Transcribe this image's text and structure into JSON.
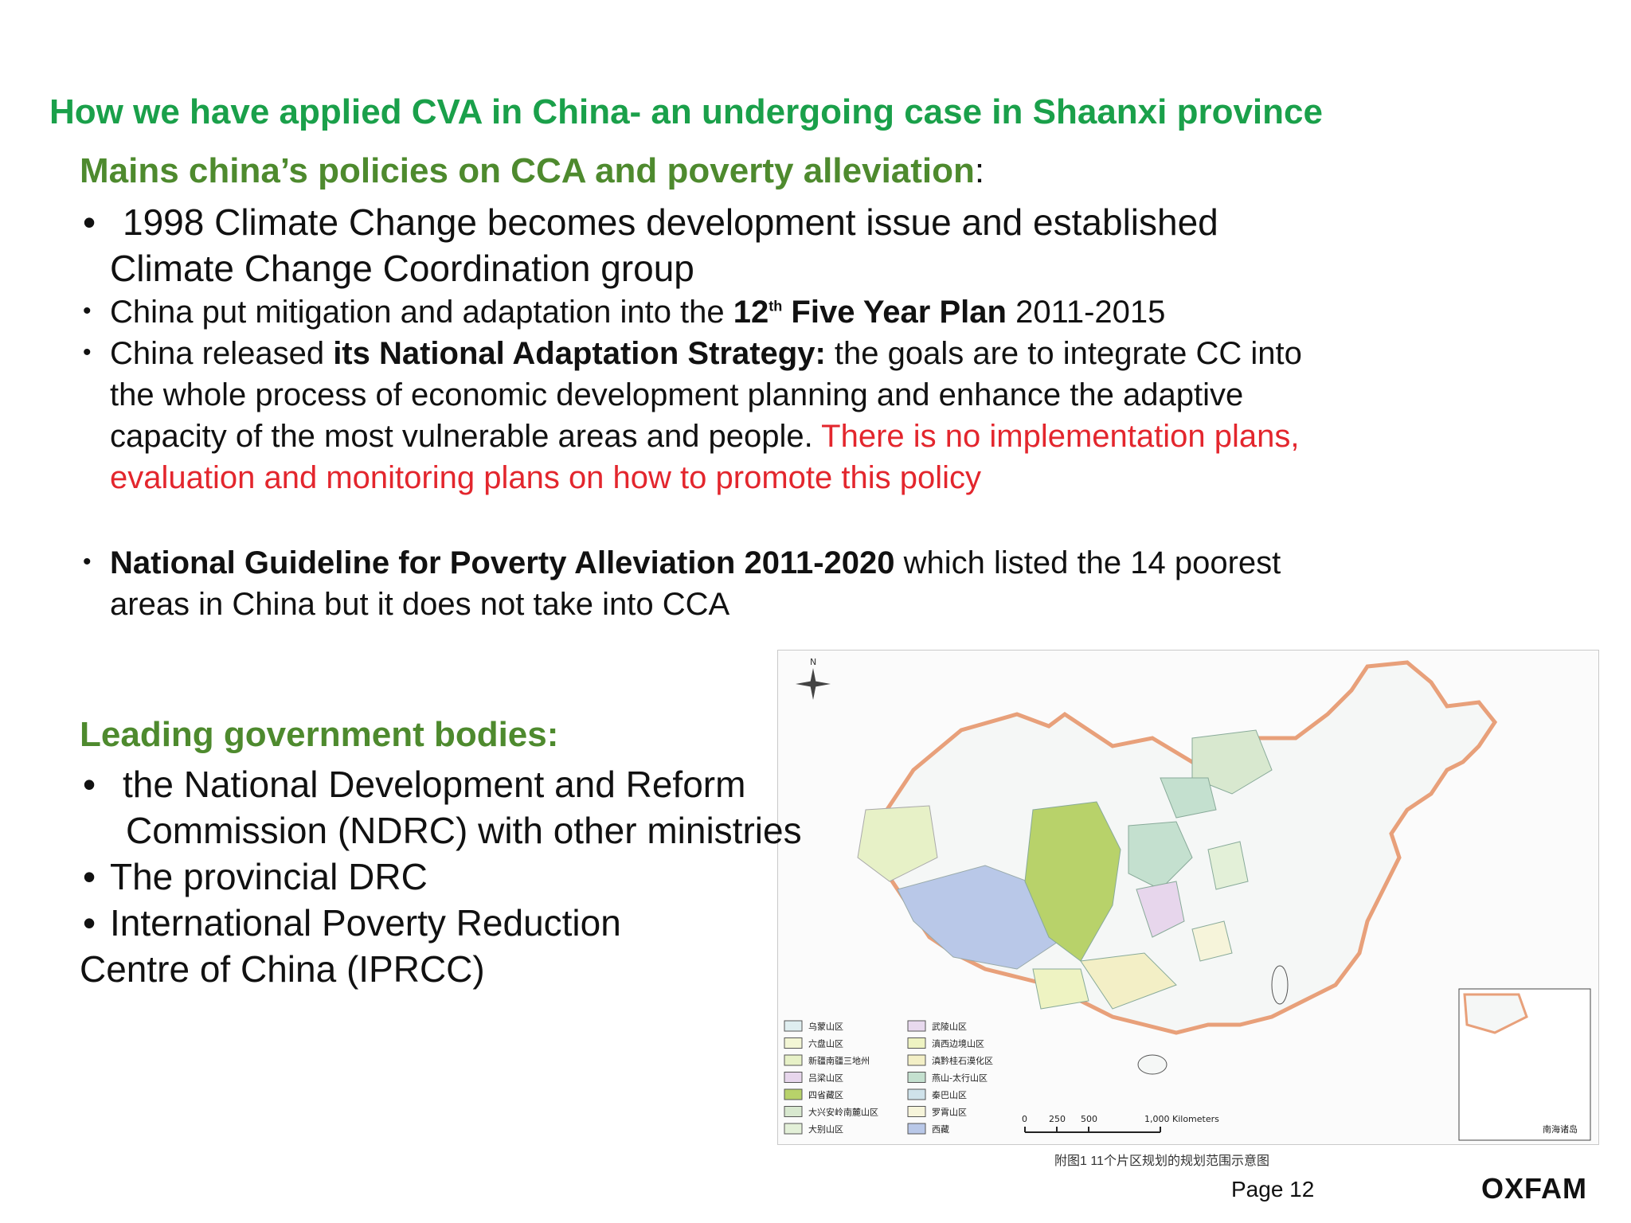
{
  "title": "How we have applied CVA in China- an undergoing case in Shaanxi province",
  "policies": {
    "heading": "Mains china’s policies on CCA and poverty alleviation",
    "colon": ":",
    "item1_line1": "1998 Climate Change becomes development issue and established",
    "item1_line2": "Climate Change Coordination group",
    "item2_pre": "China put mitigation and adaptation into the ",
    "item2_bold": "12",
    "item2_sup": "th",
    "item2_bold2": " Five Year Plan",
    "item2_post": " 2011-2015",
    "item3_pre": "China released ",
    "item3_bold": "its National Adaptation Strategy:",
    "item3_post": " the goals are to integrate CC into",
    "item3_line2": "the whole process of economic development planning and enhance the adaptive",
    "item3_line3": "capacity of the most vulnerable areas and people.",
    "item3_red1": "There is no implementation plans,",
    "item3_red2": "evaluation and monitoring plans on how to promote this policy",
    "item4_bold": "National Guideline for Poverty Alleviation 2011-2020",
    "item4_post": " which listed the 14 poorest",
    "item4_line2": "areas in China but it does not take into CCA"
  },
  "bodies": {
    "heading": "Leading government bodies:",
    "item1_line1": "the National Development and Reform",
    "item1_line2": "Commission (NDRC) with other ministries",
    "item2": "The provincial DRC",
    "item3_line1": "International Poverty Reduction",
    "item3_line2": "Centre  of China (IPRCC)"
  },
  "map": {
    "north_label": "N",
    "legend_col1": [
      "乌蒙山区",
      "六盘山区",
      "新疆南疆三地州",
      "吕梁山区",
      "四省藏区",
      "大兴安岭南麓山区",
      "大别山区"
    ],
    "legend_col2": [
      "武陵山区",
      "滇西边境山区",
      "滇黔桂石漠化区",
      "燕山-太行山区",
      "秦巴山区",
      "罗霄山区",
      "西藏"
    ],
    "legend_colors": [
      "#dfeef0",
      "#f3f6d5",
      "#e7f1c7",
      "#e7d6ec",
      "#b8d26a",
      "#d8e8cf",
      "#e3f0d8",
      "#e8d9ee",
      "#eef3c2",
      "#f3efc6",
      "#c4e0cf",
      "#cfe2ea",
      "#f6f4da",
      "#b9c8e8"
    ],
    "scale_labels": [
      "0",
      "250",
      "500",
      "1,000 Kilometers"
    ],
    "inset_label": "南海诸岛",
    "caption": "附图1   11个片区规划的规划范围示意图"
  },
  "footer": {
    "page": "Page 12",
    "logo": "OXFAM"
  }
}
